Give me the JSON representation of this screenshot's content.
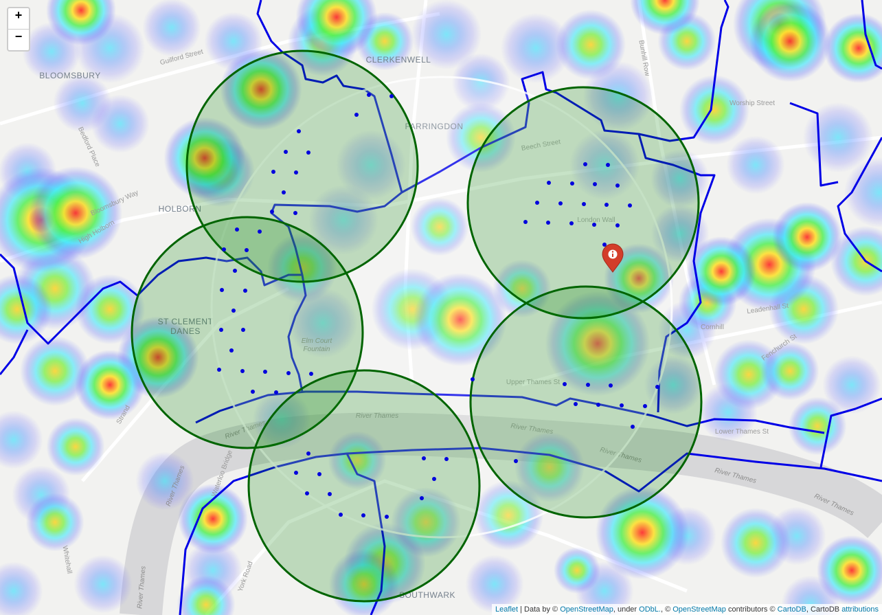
{
  "map": {
    "zoom": {
      "in": "+",
      "out": "−"
    },
    "place_labels": [
      "BLOOMSBURY",
      "CLERKENWELL",
      "FARRINGDON",
      "HOLBORN",
      "ST CLEMENT",
      "DANES",
      "SOUTHWARK"
    ],
    "street_labels": [
      "Guilford Street",
      "Beech Street",
      "London Wall",
      "Upper Thames St",
      "Cornhill",
      "Leadenhall St",
      "Lower Thames St",
      "Fenchurch St",
      "Strand",
      "Whitehall",
      "Waterloo Bridge",
      "York Road",
      "Bunhill Row",
      "Worship Street",
      "High Holborn",
      "Bloomsbury Way",
      "Bedford Place",
      "River Thames",
      "River Thames",
      "River Thames",
      "River Thames",
      "River Thames",
      "River Thames",
      "River Thames",
      "River Thames",
      "Elm Court",
      "Fountain"
    ],
    "attribution": [
      "Leaflet",
      " | Data by © ",
      "OpenStreetMap",
      ", under ",
      "ODbL.",
      ", © ",
      "OpenStreetMap",
      " contributors © ",
      "CartoDB",
      ", CartoDB ",
      "attributions"
    ]
  }
}
